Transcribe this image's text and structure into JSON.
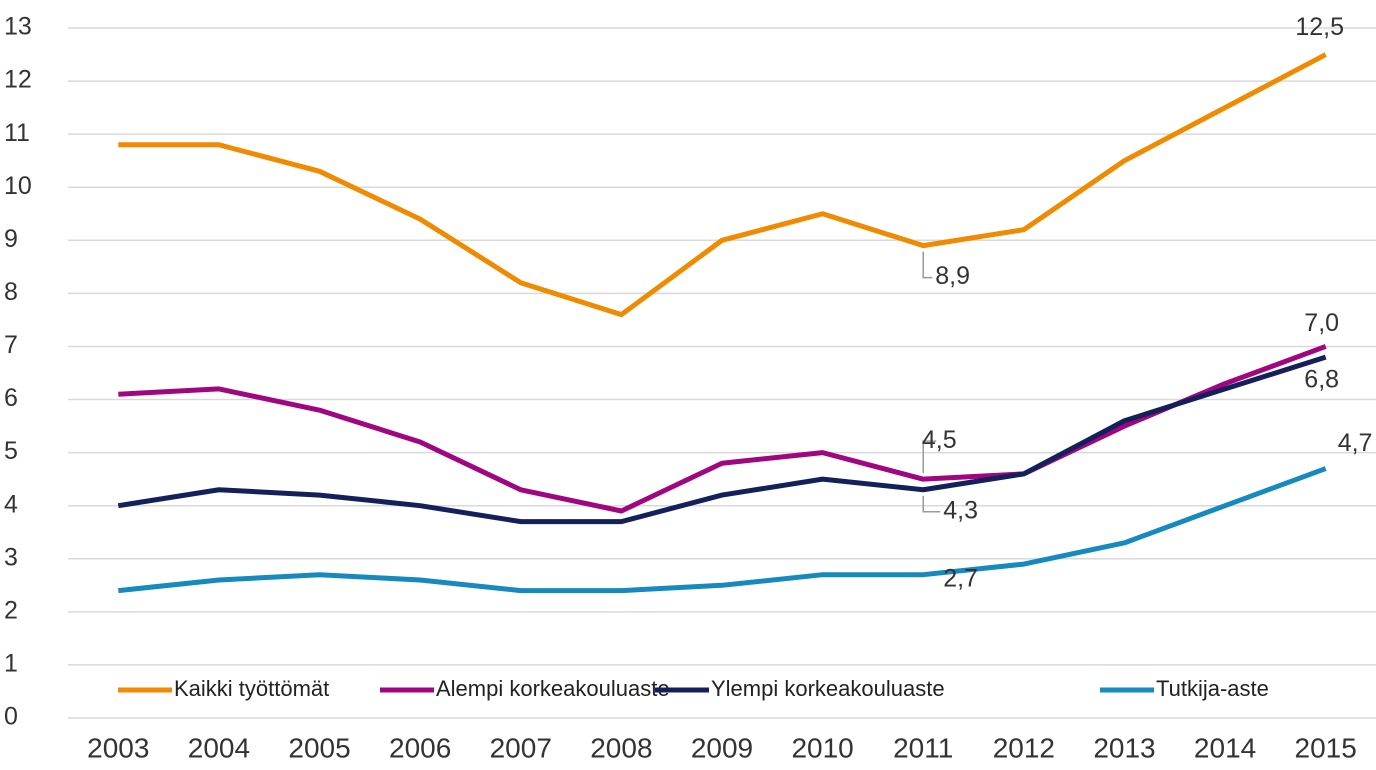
{
  "chart_data": {
    "type": "line",
    "categories": [
      "2003",
      "2004",
      "2005",
      "2006",
      "2007",
      "2008",
      "2009",
      "2010",
      "2011",
      "2012",
      "2013",
      "2014",
      "2015"
    ],
    "series": [
      {
        "name": "Kaikki työttömät",
        "color": "#f08a00",
        "values": [
          10.8,
          10.8,
          10.3,
          9.4,
          8.2,
          7.6,
          9.0,
          9.5,
          8.9,
          9.2,
          10.5,
          11.5,
          12.5
        ],
        "value_labels": [
          null,
          null,
          null,
          null,
          null,
          null,
          null,
          null,
          "8,9",
          null,
          null,
          null,
          "12,5"
        ]
      },
      {
        "name": "Alempi korkeakouluaste",
        "color": "#a0067f",
        "values": [
          6.1,
          6.2,
          5.8,
          5.2,
          4.3,
          3.9,
          4.8,
          5.0,
          4.5,
          4.6,
          5.5,
          6.3,
          7.0
        ],
        "value_labels": [
          null,
          null,
          null,
          null,
          null,
          null,
          null,
          null,
          "4,5",
          null,
          null,
          null,
          "7,0"
        ]
      },
      {
        "name": "Ylempi korkeakouluaste",
        "color": "#14205a",
        "values": [
          4.0,
          4.3,
          4.2,
          4.0,
          3.7,
          3.7,
          4.2,
          4.5,
          4.3,
          4.6,
          5.6,
          6.2,
          6.8
        ],
        "value_labels": [
          null,
          null,
          null,
          null,
          null,
          null,
          null,
          null,
          "4,3",
          null,
          null,
          null,
          "6,8"
        ]
      },
      {
        "name": "Tutkija-aste",
        "color": "#1689bf",
        "values": [
          2.4,
          2.6,
          2.7,
          2.6,
          2.4,
          2.4,
          2.5,
          2.7,
          2.7,
          2.9,
          3.3,
          4.0,
          4.7
        ],
        "value_labels": [
          null,
          null,
          null,
          null,
          null,
          null,
          null,
          null,
          "2,7",
          null,
          null,
          null,
          "4,7"
        ]
      }
    ],
    "ylim": [
      0,
      13
    ],
    "yticks": [
      0,
      1,
      2,
      3,
      4,
      5,
      6,
      7,
      8,
      9,
      10,
      11,
      12,
      13
    ],
    "grid": true,
    "legend": "bottom"
  }
}
